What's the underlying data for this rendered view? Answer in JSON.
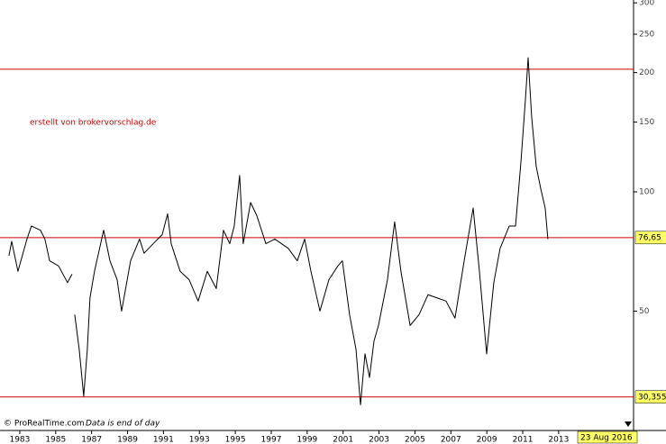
{
  "chart_data": {
    "type": "line",
    "annotation": "erstellt von brokervorschlag.de",
    "source": "© ProRealTime.com",
    "note": "Data is end of day",
    "date_label": "23 Aug 2016",
    "log_y": true,
    "color": "#000000",
    "hline_color": "#cc0000",
    "label_box_color": "#ffff66",
    "x": [
      1982.4,
      1982.55,
      1982.9,
      1983.4,
      1983.65,
      1984.15,
      1984.4,
      1984.66,
      1985.16,
      1985.66,
      1985.91,
      1986.0,
      1986.06,
      1986.31,
      1986.56,
      1986.76,
      1986.91,
      1987.16,
      1987.67,
      1988.02,
      1988.42,
      1988.67,
      1989.17,
      1989.67,
      1989.92,
      1990.43,
      1990.93,
      1991.23,
      1991.43,
      1991.93,
      1992.43,
      1992.93,
      1993.44,
      1993.94,
      1994.34,
      1994.69,
      1994.94,
      1995.24,
      1995.44,
      1995.85,
      1996.2,
      1996.7,
      1997.2,
      1997.95,
      1998.45,
      1998.86,
      1999.21,
      1999.71,
      2000.21,
      2000.71,
      2000.96,
      2001.36,
      2001.72,
      2001.97,
      2002.22,
      2002.47,
      2002.72,
      2002.97,
      2003.47,
      2003.87,
      2004.22,
      2004.73,
      2005.23,
      2005.73,
      2006.23,
      2006.73,
      2007.23,
      2007.74,
      2008.24,
      2008.59,
      2008.99,
      2009.39,
      2009.74,
      2010.25,
      2010.6,
      2010.9,
      2011.15,
      2011.3,
      2011.5,
      2011.75,
      2012.0,
      2012.25,
      2012.4
    ],
    "values": [
      69,
      75,
      63,
      76,
      82,
      80,
      76,
      67,
      65,
      59,
      62,
      null,
      49,
      40,
      30.5,
      40,
      54,
      63,
      80,
      67,
      60,
      50,
      67,
      76,
      70,
      74,
      78,
      88,
      74,
      63,
      60,
      53,
      63,
      57,
      80,
      74,
      82,
      110,
      74,
      94,
      87,
      74,
      76,
      72,
      67,
      76,
      63,
      50,
      60,
      65,
      67,
      49,
      40,
      29,
      39,
      34,
      42,
      46,
      60,
      84,
      63,
      46,
      49,
      55,
      54,
      53,
      48,
      67,
      91,
      63,
      39,
      59,
      72,
      82,
      82,
      119,
      171,
      218,
      154,
      116,
      102,
      91,
      76
    ],
    "xlim": [
      1981.9,
      2017.17
    ],
    "xticks": [
      1983,
      1985,
      1987,
      1989,
      1991,
      1993,
      1995,
      1997,
      1999,
      2001,
      2003,
      2005,
      2007,
      2009,
      2011,
      2013
    ],
    "ylim": [
      26.6,
      305
    ],
    "yticks": [
      50,
      100,
      150,
      200,
      250,
      300
    ],
    "hlines": [
      {
        "value": 204
      },
      {
        "value": 76.65,
        "label": "76,65"
      },
      {
        "value": 30.355,
        "label": "30,355"
      }
    ]
  }
}
